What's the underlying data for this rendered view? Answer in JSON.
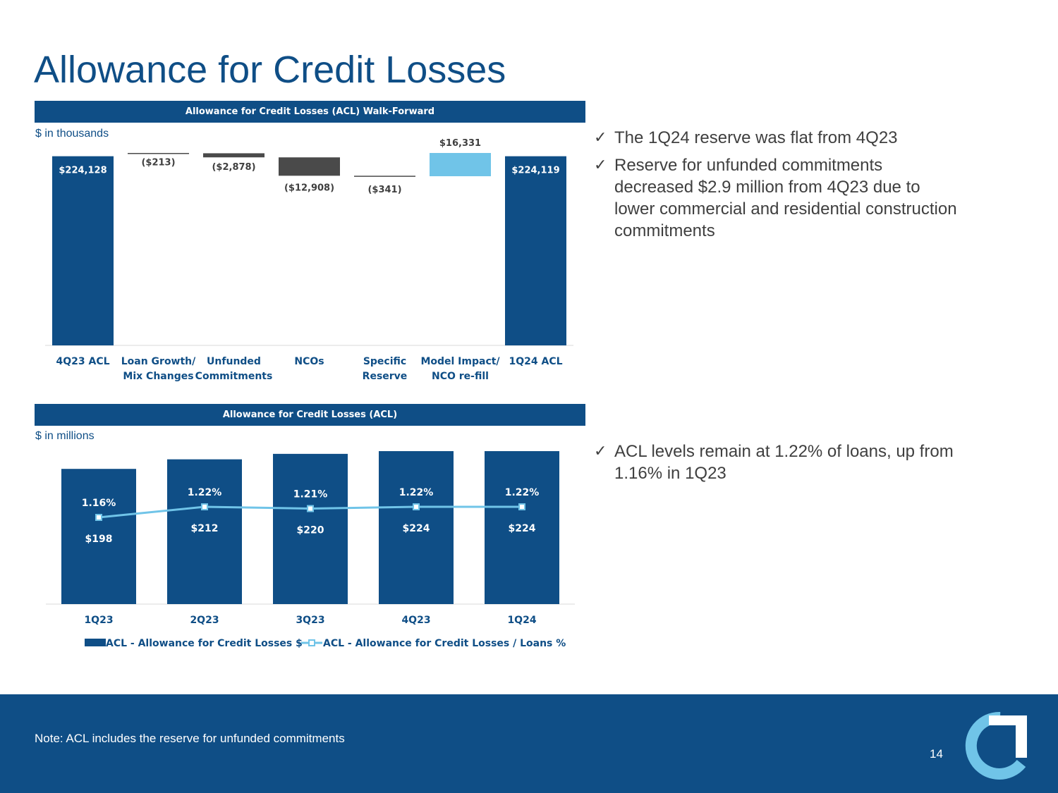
{
  "title": "Allowance for Credit Losses",
  "colors": {
    "navy": "#0f4e86",
    "gray": "#4a4a4a",
    "light_blue": "#70c4e8",
    "text_gray": "#3f3f3f"
  },
  "walk_forward": {
    "header": "Allowance for Credit Losses (ACL) Walk-Forward",
    "units": "$ in thousands"
  },
  "acl": {
    "header": "Allowance for Credit Losses (ACL)",
    "units": "$ in millions"
  },
  "bullets_top": [
    {
      "check": "✓",
      "text": "The 1Q24 reserve was flat from 4Q23"
    },
    {
      "check": "✓",
      "text": "Reserve for unfunded commitments decreased $2.9 million from 4Q23 due to lower commercial and residential construction commitments"
    }
  ],
  "bullets_bottom": [
    {
      "check": "✓",
      "text": "ACL levels remain at 1.22% of loans, up from 1.16% in 1Q23"
    }
  ],
  "footer": {
    "note": "Note: ACL includes the reserve for unfunded commitments",
    "page": "14"
  },
  "logo": {
    "icon": "company-logo-icon"
  },
  "chart_data": [
    {
      "type": "waterfall",
      "title": "Allowance for Credit Losses (ACL) Walk-Forward",
      "units": "$ in thousands",
      "categories": [
        [
          "4Q23 ACL"
        ],
        [
          "Loan Growth/",
          "Mix Changes"
        ],
        [
          "Unfunded",
          "Commitments"
        ],
        [
          "NCOs"
        ],
        [
          "Specific",
          "Reserve"
        ],
        [
          "Model Impact/",
          "NCO re-fill"
        ],
        [
          "1Q24 ACL"
        ]
      ],
      "values": [
        224128,
        -213,
        -2878,
        -12908,
        -341,
        16331,
        224119
      ],
      "labels": [
        "$224,128",
        "($213)",
        "($2,878)",
        "($12,908)",
        "($341)",
        "$16,331",
        "$224,119"
      ],
      "kinds": [
        "total",
        "decrease",
        "decrease",
        "decrease",
        "decrease",
        "increase",
        "total"
      ],
      "ylim": [
        0,
        228000
      ]
    },
    {
      "type": "bar+line",
      "title": "Allowance for Credit Losses (ACL)",
      "units": "$ in millions",
      "categories": [
        "1Q23",
        "2Q23",
        "3Q23",
        "4Q23",
        "1Q24"
      ],
      "series": [
        {
          "name": "ACL - Allowance for Credit Losses $",
          "type": "bar",
          "values": [
            198,
            212,
            220,
            224,
            224
          ],
          "labels": [
            "$198",
            "$212",
            "$220",
            "$224",
            "$224"
          ]
        },
        {
          "name": "ACL - Allowance for Credit Losses / Loans %",
          "type": "line",
          "values": [
            1.16,
            1.22,
            1.21,
            1.22,
            1.22
          ],
          "labels": [
            "1.16%",
            "1.22%",
            "1.21%",
            "1.22%",
            "1.22%"
          ]
        }
      ],
      "ylim_bar": [
        0,
        240
      ],
      "ylim_line": [
        0.6,
        1.4
      ],
      "legend": "bottom"
    }
  ]
}
